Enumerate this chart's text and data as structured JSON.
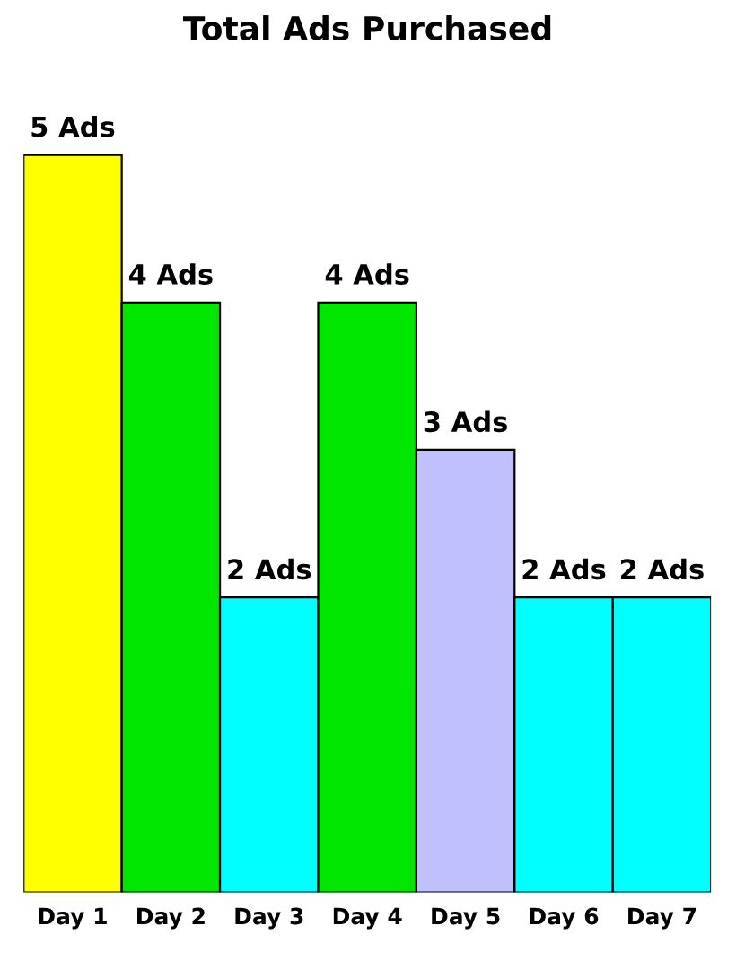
{
  "chart_data": {
    "type": "bar",
    "title": "Total Ads Purchased",
    "categories": [
      "Day 1",
      "Day 2",
      "Day 3",
      "Day 4",
      "Day 5",
      "Day 6",
      "Day 7"
    ],
    "values": [
      5,
      4,
      2,
      4,
      3,
      2,
      2
    ],
    "colors": [
      "#ffff00",
      "#00e600",
      "#00ffff",
      "#00e600",
      "#c0c0ff",
      "#00ffff",
      "#00ffff"
    ],
    "value_labels": [
      "5 Ads",
      "4 Ads",
      "2 Ads",
      "4 Ads",
      "3 Ads",
      "2 Ads",
      "2 Ads"
    ],
    "grid": false,
    "legend": false
  }
}
